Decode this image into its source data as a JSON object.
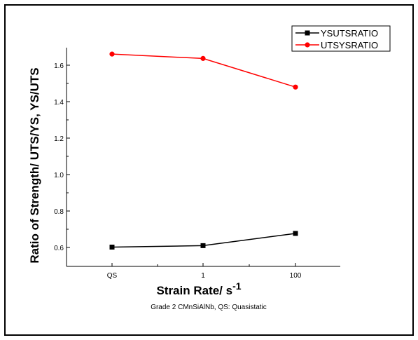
{
  "chart_data": {
    "type": "line",
    "categories": [
      "QS",
      "1",
      "100"
    ],
    "series": [
      {
        "name": "YSUTSRATIO",
        "values": [
          0.602,
          0.61,
          0.677
        ],
        "color": "#000000",
        "marker": "square"
      },
      {
        "name": "UTSYSRATIO",
        "values": [
          1.661,
          1.637,
          1.48
        ],
        "color": "#ff0000",
        "marker": "circle"
      }
    ],
    "yticks": [
      "0.6",
      "0.8",
      "1.0",
      "1.2",
      "1.4",
      "1.6"
    ],
    "ylim": [
      0.5,
      1.7
    ],
    "ylabel": "Ratio of Strength/ UTS/YS, YS/UTS",
    "xlabel": "Strain Rate/ s",
    "xlabel_superscript": "-1",
    "caption": "Grade 2 CMnSiAlNb,  QS: Quasistatic",
    "legend_position": "top-right",
    "grid": false
  }
}
